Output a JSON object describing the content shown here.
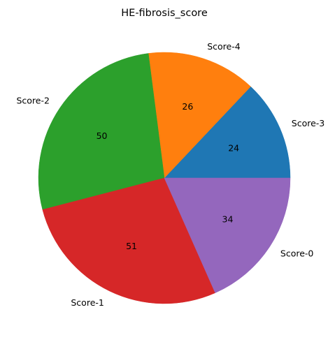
{
  "chart_data": {
    "type": "pie",
    "title": "HE-fibrosis_score",
    "start_angle_deg": 0,
    "direction": "counterclockwise",
    "slices": [
      {
        "label": "Score-3",
        "value": 24,
        "display": "24",
        "color": "#1f77b4"
      },
      {
        "label": "Score-4",
        "value": 26,
        "display": "26",
        "color": "#ff7f0e"
      },
      {
        "label": "Score-2",
        "value": 50,
        "display": "50",
        "color": "#2ca02c"
      },
      {
        "label": "Score-1",
        "value": 51,
        "display": "51",
        "color": "#d62728"
      },
      {
        "label": "Score-0",
        "value": 34,
        "display": "34",
        "color": "#9467bd"
      }
    ]
  }
}
